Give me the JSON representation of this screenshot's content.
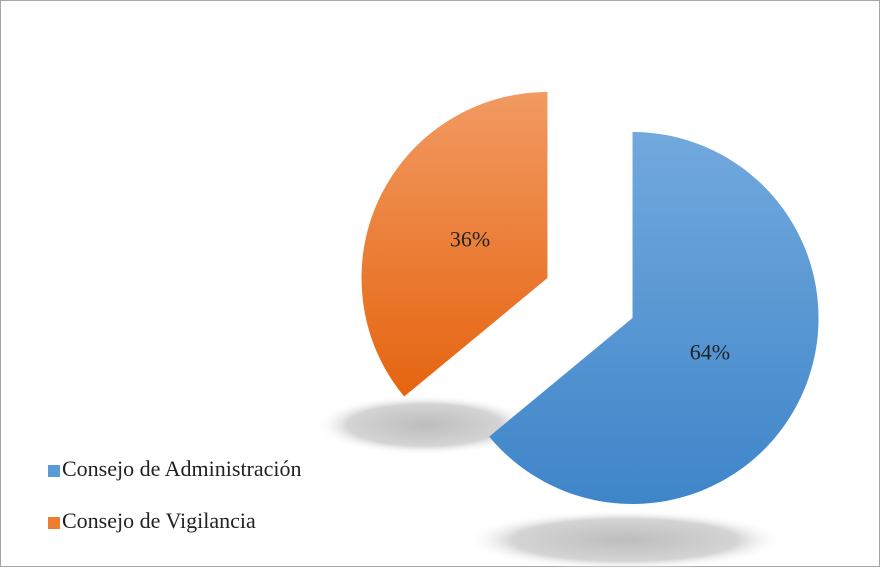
{
  "chart_data": {
    "type": "pie",
    "categories": [
      "Consejo de Administración",
      "Consejo de Vigilancia"
    ],
    "values": [
      64,
      36
    ],
    "value_labels": [
      "64%",
      "36%"
    ],
    "colors": [
      "#5b9bd5",
      "#ed7d31"
    ],
    "legend": "bottom-left"
  }
}
